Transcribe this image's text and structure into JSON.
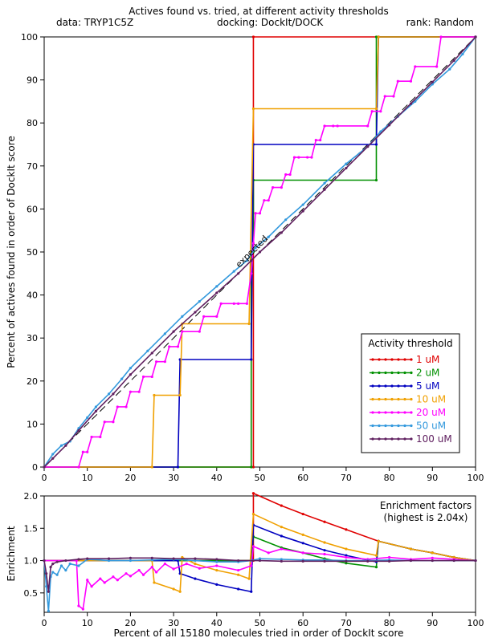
{
  "header": {
    "title": "Actives found vs. tried, at different activity thresholds",
    "data_label": "data: TRYP1C5Z",
    "docking_label": "docking: DockIt/DOCK",
    "rank_label": "rank: Random"
  },
  "chart_data": [
    {
      "type": "line",
      "ylabel": "Percent of actives found in order of DockIt score",
      "xlim": [
        0,
        100
      ],
      "ylim": [
        0,
        100
      ],
      "xticks": [
        "0",
        "10",
        "20",
        "30",
        "40",
        "50",
        "60",
        "70",
        "80",
        "90",
        "100"
      ],
      "yticks": [
        "0",
        "10",
        "20",
        "30",
        "40",
        "50",
        "60",
        "70",
        "80",
        "90",
        "100"
      ],
      "expected_label": "expected",
      "expected_line": {
        "x": [
          0,
          100
        ],
        "y": [
          0,
          100
        ],
        "style": "dashed",
        "color": "#000000"
      },
      "legend": {
        "title": "Activity threshold",
        "position": "bottom-right"
      },
      "series": [
        {
          "name": "1 uM",
          "color": "#e00000",
          "x": [
            0,
            48.5,
            48.5,
            77.5,
            77.5,
            100
          ],
          "y": [
            0,
            0,
            100,
            100,
            100,
            100
          ]
        },
        {
          "name": "2 uM",
          "color": "#009000",
          "x": [
            0,
            48,
            48,
            48.5,
            48.5,
            77,
            77,
            100
          ],
          "y": [
            0,
            0,
            50,
            50,
            66.7,
            66.7,
            100,
            100
          ]
        },
        {
          "name": "5 uM",
          "color": "#0000c0",
          "x": [
            0,
            31,
            31.5,
            48,
            48.5,
            77,
            77.5,
            100
          ],
          "y": [
            0,
            0,
            25,
            25,
            75,
            75,
            100,
            100
          ]
        },
        {
          "name": "10 uM",
          "color": "#f0a000",
          "x": [
            0,
            25,
            25.5,
            31.5,
            32,
            47.5,
            48.5,
            77,
            77.5,
            100
          ],
          "y": [
            0,
            0,
            16.7,
            16.7,
            33.3,
            33.3,
            83.3,
            83.3,
            100,
            100
          ]
        },
        {
          "name": "20 uM",
          "color": "#ff00ff",
          "x": [
            0,
            8,
            9,
            10,
            11,
            13,
            14,
            16,
            17,
            19,
            20,
            22,
            23,
            25,
            26,
            28,
            29,
            31,
            32,
            36,
            37,
            40,
            41,
            44,
            45,
            47,
            48,
            48.5,
            49,
            50,
            51,
            52,
            53,
            55,
            56,
            57,
            58,
            59,
            61,
            62,
            63,
            64,
            65,
            67,
            68,
            75,
            76,
            78,
            79,
            81,
            82,
            85,
            86,
            91,
            92,
            100
          ],
          "y": [
            0,
            0,
            3.5,
            3.5,
            7,
            7,
            10.5,
            10.5,
            14,
            14,
            17.5,
            17.5,
            21,
            21,
            24.5,
            24.5,
            28,
            28,
            31.5,
            31.5,
            35,
            35,
            38,
            38,
            38,
            38,
            45,
            52,
            59,
            59,
            62,
            62,
            65,
            65,
            68,
            68,
            72,
            72,
            72,
            72,
            76,
            76,
            79.3,
            79.3,
            79.3,
            79.3,
            82.7,
            82.7,
            86.2,
            86.2,
            89.7,
            89.7,
            93.1,
            93.1,
            100,
            100
          ]
        },
        {
          "name": "50 uM",
          "color": "#3399dd",
          "x": [
            0,
            2,
            4,
            6,
            8,
            10,
            12,
            15,
            18,
            20,
            24,
            28,
            32,
            36,
            40,
            44,
            47,
            49,
            52,
            56,
            60,
            65,
            70,
            75,
            78,
            82,
            86,
            90,
            94,
            97,
            100
          ],
          "y": [
            0,
            3,
            5,
            6,
            9,
            11.5,
            14,
            17,
            20.5,
            23,
            27,
            31,
            35,
            38.5,
            42,
            45.5,
            48,
            51,
            53.5,
            57.5,
            61,
            66,
            70.5,
            74.5,
            78,
            81.5,
            85,
            89,
            92.5,
            96,
            100
          ]
        },
        {
          "name": "100 uM",
          "color": "#602060",
          "x": [
            0,
            2,
            5,
            8,
            12,
            16,
            20,
            25,
            30,
            35,
            40,
            45,
            48,
            50,
            55,
            60,
            65,
            70,
            75,
            80,
            85,
            90,
            95,
            100
          ],
          "y": [
            0,
            2,
            5,
            8.5,
            13,
            17,
            21.5,
            26.5,
            31.5,
            36,
            40.5,
            45,
            48,
            50,
            54.5,
            59.5,
            64.5,
            69.5,
            74.5,
            79.5,
            84.5,
            89.5,
            94.5,
            100
          ]
        }
      ]
    },
    {
      "type": "line",
      "xlabel": "Percent of all 15180 molecules tried in order of DockIt score",
      "ylabel": "Enrichment",
      "xlim": [
        0,
        100
      ],
      "ylim": [
        0.2,
        2.0
      ],
      "xticks": [
        "0",
        "10",
        "20",
        "30",
        "40",
        "50",
        "60",
        "70",
        "80",
        "90",
        "100"
      ],
      "yticks": [
        "0.5",
        "1.0",
        "1.5",
        "2.0"
      ],
      "annotation": [
        "Enrichment factors",
        "(highest is 2.04x)"
      ],
      "series": [
        {
          "name": "1 uM",
          "color": "#e00000",
          "x": [
            0,
            48.5,
            48.5,
            55,
            60,
            65,
            70,
            77.5,
            77.5,
            85,
            90,
            95,
            100
          ],
          "y": [
            1.0,
            1.0,
            2.04,
            1.85,
            1.72,
            1.6,
            1.48,
            1.3,
            1.3,
            1.18,
            1.12,
            1.05,
            1.0
          ]
        },
        {
          "name": "2 uM",
          "color": "#009000",
          "x": [
            0,
            48,
            48.5,
            55,
            60,
            65,
            70,
            77,
            77.5,
            85,
            90,
            95,
            100
          ],
          "y": [
            1.0,
            1.0,
            1.37,
            1.2,
            1.12,
            1.03,
            0.96,
            0.9,
            1.3,
            1.18,
            1.12,
            1.05,
            1.0
          ]
        },
        {
          "name": "5 uM",
          "color": "#0000c0",
          "x": [
            0,
            31,
            31.5,
            35,
            40,
            45,
            48,
            48.5,
            55,
            60,
            65,
            70,
            77,
            77.5,
            85,
            90,
            95,
            100
          ],
          "y": [
            1.0,
            1.0,
            0.8,
            0.72,
            0.63,
            0.56,
            0.52,
            1.55,
            1.38,
            1.27,
            1.16,
            1.08,
            0.98,
            1.3,
            1.18,
            1.12,
            1.05,
            1.0
          ]
        },
        {
          "name": "10 uM",
          "color": "#f0a000",
          "x": [
            0,
            25,
            25.5,
            30,
            31.5,
            32,
            35,
            40,
            45,
            47.5,
            48.5,
            55,
            60,
            65,
            70,
            77,
            77.5,
            85,
            90,
            95,
            100
          ],
          "y": [
            1.0,
            1.0,
            0.66,
            0.56,
            0.52,
            1.05,
            0.95,
            0.85,
            0.78,
            0.72,
            1.72,
            1.52,
            1.4,
            1.28,
            1.18,
            1.08,
            1.3,
            1.18,
            1.12,
            1.05,
            1.0
          ]
        },
        {
          "name": "20 uM",
          "color": "#ff00ff",
          "x": [
            0,
            7.5,
            8,
            9,
            10,
            11,
            13,
            14,
            16,
            17,
            19,
            20,
            22,
            23,
            25,
            26,
            28,
            30,
            33,
            36,
            40,
            45,
            48,
            48.5,
            52,
            55,
            60,
            65,
            70,
            75,
            80,
            85,
            90,
            95,
            100
          ],
          "y": [
            1.0,
            1.0,
            0.3,
            0.25,
            0.7,
            0.6,
            0.72,
            0.66,
            0.75,
            0.7,
            0.8,
            0.76,
            0.85,
            0.78,
            0.9,
            0.82,
            0.95,
            0.87,
            0.95,
            0.88,
            0.92,
            0.85,
            0.92,
            1.22,
            1.12,
            1.18,
            1.12,
            1.1,
            1.05,
            1.02,
            1.05,
            1.02,
            1.04,
            1.02,
            1.0
          ]
        },
        {
          "name": "50 uM",
          "color": "#3399dd",
          "x": [
            0,
            0.5,
            1,
            1.5,
            2,
            3,
            4,
            5,
            6,
            8,
            10,
            15,
            20,
            25,
            30,
            35,
            40,
            45,
            48,
            50,
            55,
            60,
            65,
            70,
            75,
            80,
            85,
            90,
            95,
            100
          ],
          "y": [
            1.0,
            0.6,
            0.22,
            0.75,
            0.82,
            0.78,
            0.92,
            0.85,
            0.95,
            0.92,
            1.02,
            1.0,
            1.0,
            1.01,
            1.02,
            1.0,
            0.98,
            0.98,
            1.0,
            1.03,
            1.02,
            1.01,
            1.01,
            1.0,
            1.0,
            1.01,
            1.0,
            1.0,
            1.0,
            1.0
          ]
        },
        {
          "name": "100 uM",
          "color": "#602060",
          "x": [
            0,
            0.5,
            1,
            1.5,
            2,
            3,
            5,
            8,
            10,
            15,
            20,
            25,
            30,
            35,
            40,
            45,
            50,
            55,
            60,
            65,
            70,
            75,
            80,
            85,
            90,
            95,
            100
          ],
          "y": [
            1.0,
            0.8,
            0.52,
            0.9,
            0.95,
            0.98,
            1.0,
            1.02,
            1.03,
            1.03,
            1.04,
            1.04,
            1.03,
            1.03,
            1.02,
            1.0,
            1.0,
            0.99,
            0.99,
            0.99,
            0.99,
            0.99,
            0.99,
            1.0,
            1.0,
            1.0,
            1.0
          ]
        }
      ]
    }
  ]
}
